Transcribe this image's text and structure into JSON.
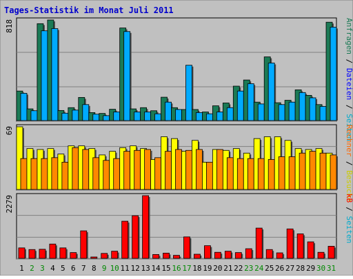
{
  "chart_data": {
    "type": "bar",
    "title": "Tages-Statistik im Monat Juli 2011",
    "categories": [
      "1",
      "2",
      "3",
      "4",
      "5",
      "6",
      "7",
      "8",
      "9",
      "10",
      "11",
      "12",
      "13",
      "14",
      "15",
      "16",
      "17",
      "18",
      "19",
      "20",
      "21",
      "22",
      "23",
      "24",
      "25",
      "26",
      "27",
      "28",
      "29",
      "30",
      "31"
    ],
    "weekend_days": [
      "2",
      "3",
      "9",
      "10",
      "16",
      "17",
      "23",
      "24",
      "30",
      "31"
    ],
    "panels": [
      {
        "id": "top",
        "ymax": 818,
        "ymax_label": "818",
        "series": [
          {
            "name": "Anfragen",
            "color": "#1b7a55",
            "values": [
              240,
              95,
              788,
              818,
              82,
              105,
              188,
              65,
              58,
              92,
              753,
              95,
              105,
              80,
              190,
              105,
              90,
              90,
              70,
              120,
              143,
              280,
              330,
              150,
              518,
              145,
              165,
              250,
              205,
              130,
              800
            ]
          },
          {
            "name": "Dateien",
            "color": "#00aaff",
            "values": [
              222,
              80,
              730,
              748,
              60,
              85,
              130,
              52,
              40,
              70,
              724,
              70,
              70,
              55,
              150,
              90,
              450,
              65,
              55,
              70,
              105,
              240,
              300,
              135,
              468,
              130,
              150,
              228,
              185,
              115,
              760
            ]
          },
          {
            "name": "Seiten",
            "color": "#00a0e0",
            "values": [],
            "legend_only": true
          }
        ],
        "legend_labels": [
          "Anfragen",
          " / ",
          "Dateien",
          " / ",
          "Seiten"
        ]
      },
      {
        "id": "mid",
        "ymax": 69,
        "ymax_label": "69",
        "series": [
          {
            "name": "Besuche",
            "color": "#ffff00",
            "values": [
              69,
              45,
              44,
              45,
              39,
              48,
              48,
              45,
              38,
              42,
              46,
              48,
              45,
              33,
              58,
              56,
              42,
              54,
              30,
              44,
              43,
              45,
              40,
              56,
              58,
              58,
              54,
              45,
              44,
              45,
              40
            ]
          },
          {
            "name": "Rechner",
            "color": "#ff8800",
            "values": [
              34,
              34,
              34,
              35,
              30,
              46,
              44,
              35,
              32,
              34,
              42,
              43,
              44,
              35,
              42,
              44,
              43,
              44,
              30,
              44,
              35,
              34,
              34,
              34,
              33,
              36,
              36,
              40,
              42,
              40,
              38
            ]
          }
        ],
        "legend_labels": [
          "Rechner",
          " / ",
          "Besuche",
          " / ",
          "Seiten"
        ]
      },
      {
        "id": "bottom",
        "ymax": 2279,
        "ymax_label": "2279",
        "series": [
          {
            "name": "kB",
            "color": "#ff0000",
            "values": [
              380,
              320,
              330,
              520,
              380,
              210,
              1000,
              50,
              180,
              260,
              1350,
              1550,
              2279,
              140,
              190,
              110,
              780,
              150,
              460,
              220,
              260,
              210,
              350,
              1100,
              320,
              200,
              1070,
              890,
              600,
              220,
              440
            ]
          }
        ],
        "legend_labels": [
          "kB"
        ]
      }
    ]
  }
}
